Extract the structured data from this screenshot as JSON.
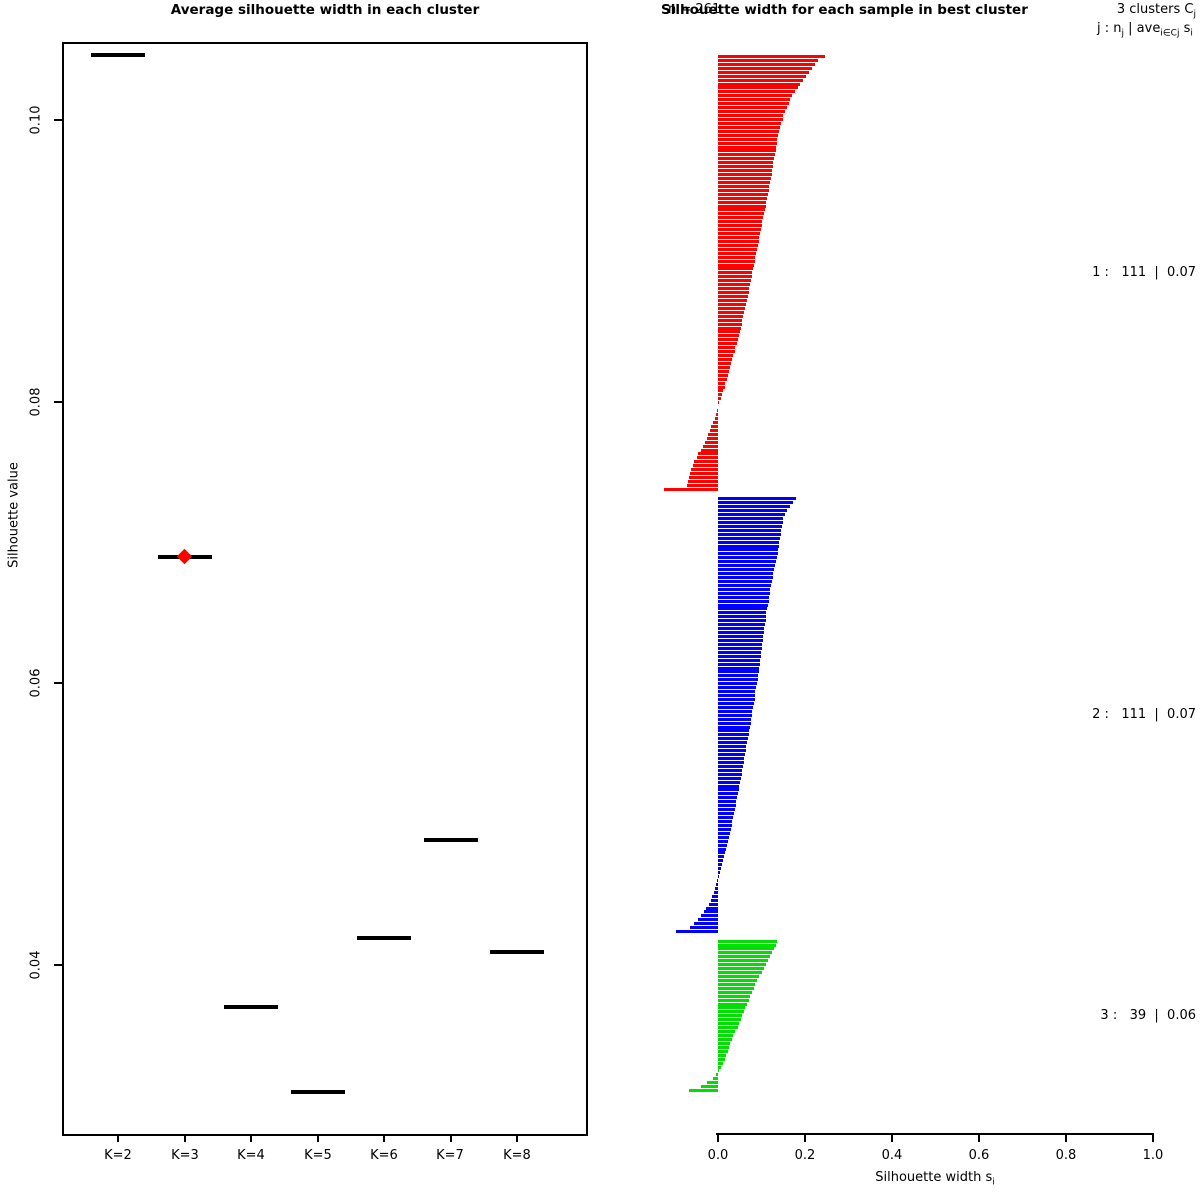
{
  "figure": {
    "background": "#ffffff"
  },
  "left_panel": {
    "title": "Average silhouette width in each cluster",
    "ylabel": "Silhouette value",
    "y_tick_labels": [
      "0.10",
      "0.08",
      "0.06",
      "0.04"
    ],
    "x_tick_labels": [
      "K=2",
      "K=3",
      "K=4",
      "K=5",
      "K=6",
      "K=7",
      "K=8"
    ]
  },
  "right_panel": {
    "title": "Silhouette width for each sample in best cluster",
    "n_label": "n = 261",
    "header": {
      "line1_p": "3  clusters  C",
      "line1_s": "j",
      "line2_p1": "j :  n",
      "line2_s1": "j",
      "line2_p2": " | ave",
      "line2_s2": "i∈Cj",
      "line2_p3": "  s",
      "line2_s3": "i"
    },
    "cluster_labels": [
      "1 :   111  |  0.07",
      "2 :   111  |  0.07",
      "3 :   39  |  0.06"
    ],
    "xlabel_p": "Silhouette width s",
    "xlabel_s": "i",
    "x_tick_labels": [
      "0.0",
      "0.2",
      "0.4",
      "0.6",
      "0.8",
      "1.0"
    ]
  },
  "chart_data": [
    {
      "type": "scatter",
      "title": "Average silhouette width in each cluster",
      "ylabel": "Silhouette value",
      "marker": "horizontal-line-segment",
      "categories": [
        "K=2",
        "K=3",
        "K=4",
        "K=5",
        "K=6",
        "K=7",
        "K=8"
      ],
      "values": [
        0.1046,
        0.069,
        0.037,
        0.031,
        0.0419,
        0.0489,
        0.0409
      ],
      "best_k": "K=3",
      "best_marker": "red-diamond",
      "y_ticks": [
        0.04,
        0.06,
        0.08,
        0.1
      ],
      "ylim": [
        0.028,
        0.108
      ],
      "grid": false
    },
    {
      "type": "bar",
      "orientation": "horizontal",
      "title": "Silhouette width for each sample in best cluster",
      "n": 261,
      "xlabel": "Silhouette width s_i",
      "x_ticks": [
        0.0,
        0.2,
        0.4,
        0.6,
        0.8,
        1.0
      ],
      "xlim": [
        -0.13,
        1.0
      ],
      "grid": false,
      "clusters": [
        {
          "cluster": 1,
          "n": 111,
          "avg_width": 0.07,
          "color": "#ff0000",
          "values": [
            0.245,
            0.23,
            0.222,
            0.215,
            0.208,
            0.201,
            0.195,
            0.189,
            0.183,
            0.176,
            0.17,
            0.166,
            0.162,
            0.158,
            0.154,
            0.15,
            0.148,
            0.145,
            0.143,
            0.14,
            0.138,
            0.136,
            0.135,
            0.133,
            0.132,
            0.13,
            0.129,
            0.127,
            0.126,
            0.124,
            0.123,
            0.121,
            0.119,
            0.118,
            0.116,
            0.114,
            0.112,
            0.11,
            0.109,
            0.107,
            0.105,
            0.103,
            0.102,
            0.1,
            0.098,
            0.096,
            0.095,
            0.093,
            0.091,
            0.09,
            0.088,
            0.086,
            0.084,
            0.083,
            0.081,
            0.079,
            0.077,
            0.075,
            0.074,
            0.072,
            0.07,
            0.068,
            0.066,
            0.064,
            0.062,
            0.06,
            0.058,
            0.056,
            0.054,
            0.052,
            0.05,
            0.048,
            0.045,
            0.043,
            0.04,
            0.038,
            0.035,
            0.033,
            0.03,
            0.028,
            0.025,
            0.022,
            0.02,
            0.017,
            0.015,
            0.012,
            0.009,
            0.006,
            0.003,
            0.0,
            -0.003,
            -0.005,
            -0.008,
            -0.011,
            -0.015,
            -0.018,
            -0.022,
            -0.026,
            -0.03,
            -0.035,
            -0.04,
            -0.045,
            -0.049,
            -0.054,
            -0.058,
            -0.062,
            -0.065,
            -0.067,
            -0.068,
            -0.07,
            -0.123
          ]
        },
        {
          "cluster": 2,
          "n": 111,
          "avg_width": 0.07,
          "color": "#0000ff",
          "values": [
            0.179,
            0.172,
            0.165,
            0.158,
            0.154,
            0.15,
            0.148,
            0.147,
            0.145,
            0.144,
            0.143,
            0.141,
            0.14,
            0.138,
            0.137,
            0.135,
            0.133,
            0.131,
            0.129,
            0.127,
            0.125,
            0.123,
            0.122,
            0.12,
            0.119,
            0.117,
            0.116,
            0.114,
            0.113,
            0.111,
            0.11,
            0.109,
            0.108,
            0.106,
            0.105,
            0.104,
            0.103,
            0.102,
            0.1,
            0.099,
            0.098,
            0.097,
            0.096,
            0.094,
            0.093,
            0.092,
            0.091,
            0.089,
            0.088,
            0.086,
            0.085,
            0.084,
            0.082,
            0.081,
            0.079,
            0.078,
            0.076,
            0.075,
            0.073,
            0.072,
            0.07,
            0.068,
            0.067,
            0.065,
            0.064,
            0.062,
            0.06,
            0.059,
            0.057,
            0.056,
            0.054,
            0.052,
            0.051,
            0.049,
            0.048,
            0.046,
            0.044,
            0.042,
            0.041,
            0.039,
            0.037,
            0.035,
            0.033,
            0.032,
            0.03,
            0.028,
            0.026,
            0.023,
            0.021,
            0.018,
            0.016,
            0.014,
            0.011,
            0.009,
            0.007,
            0.004,
            0.001,
            -0.002,
            -0.005,
            -0.007,
            -0.01,
            -0.013,
            -0.017,
            -0.021,
            -0.027,
            -0.032,
            -0.039,
            -0.046,
            -0.054,
            -0.064,
            -0.096
          ]
        },
        {
          "cluster": 3,
          "n": 39,
          "avg_width": 0.06,
          "color": "#00e000",
          "values": [
            0.135,
            0.134,
            0.128,
            0.124,
            0.12,
            0.115,
            0.11,
            0.105,
            0.1,
            0.095,
            0.09,
            0.086,
            0.082,
            0.078,
            0.074,
            0.07,
            0.066,
            0.062,
            0.059,
            0.055,
            0.052,
            0.048,
            0.045,
            0.038,
            0.035,
            0.032,
            0.028,
            0.025,
            0.022,
            0.018,
            0.015,
            0.011,
            0.007,
            0.002,
            -0.004,
            -0.012,
            -0.025,
            -0.04,
            -0.066
          ]
        }
      ]
    }
  ]
}
